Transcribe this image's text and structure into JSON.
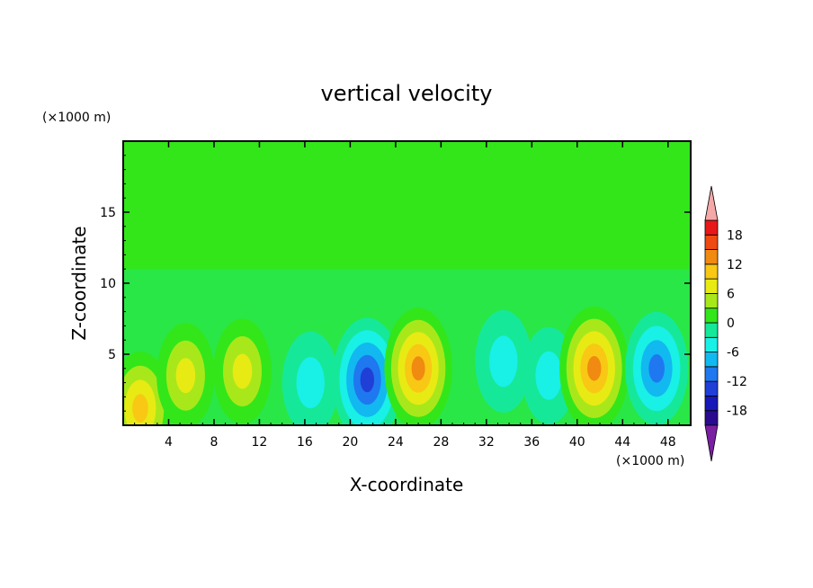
{
  "chart_data": {
    "type": "heatmap",
    "title": "vertical velocity",
    "xlabel": "X-coordinate",
    "ylabel": "Z-coordinate",
    "x_unit": "(×1000 m)",
    "y_unit": "(×1000 m)",
    "xlim": [
      0,
      50
    ],
    "ylim": [
      0,
      20
    ],
    "x_ticks": [
      4,
      8,
      12,
      16,
      20,
      24,
      28,
      32,
      36,
      40,
      44,
      48
    ],
    "y_ticks": [
      5,
      10,
      15
    ],
    "colorbar": {
      "ticks": [
        18,
        12,
        6,
        0,
        -6,
        -12,
        -18
      ],
      "levels": [
        -21,
        -18,
        -15,
        -12,
        -9,
        -6,
        -3,
        0,
        3,
        6,
        9,
        12,
        15,
        18,
        21
      ],
      "colors": [
        "#7a1fa2",
        "#2a0a8f",
        "#1818b8",
        "#1f3fd6",
        "#1f78f0",
        "#12b8f0",
        "#19f0e6",
        "#16e89a",
        "#33e61a",
        "#a8e81a",
        "#e8ea14",
        "#f8c814",
        "#f08a10",
        "#ee4a12",
        "#e81818",
        "#f4a8a8"
      ]
    },
    "cells": [
      {
        "x": 1.5,
        "z": 1.2,
        "w": 10
      },
      {
        "x": 5.5,
        "z": 3.5,
        "w": 7
      },
      {
        "x": 10.5,
        "z": 3.8,
        "w": 7
      },
      {
        "x": 16.5,
        "z": 3.0,
        "w": -6
      },
      {
        "x": 21.5,
        "z": 3.2,
        "w": -14
      },
      {
        "x": 26.0,
        "z": 4.0,
        "w": 13
      },
      {
        "x": 33.5,
        "z": 4.5,
        "w": -6
      },
      {
        "x": 37.5,
        "z": 3.5,
        "w": -4
      },
      {
        "x": 41.5,
        "z": 4.0,
        "w": 14
      },
      {
        "x": 47.0,
        "z": 4.0,
        "w": -10
      }
    ]
  }
}
